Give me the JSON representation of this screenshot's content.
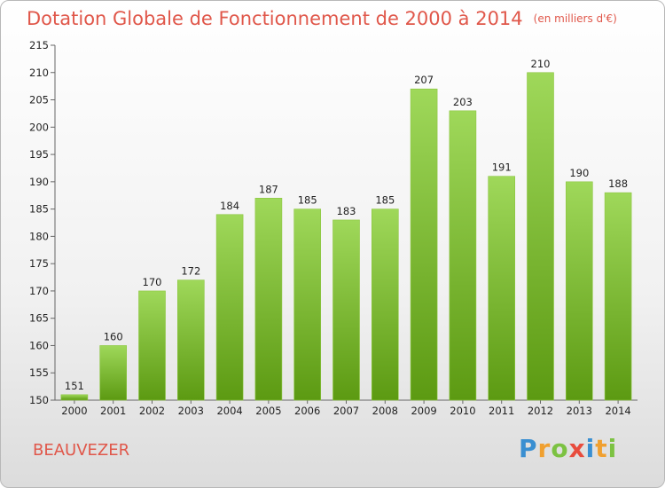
{
  "chart_data": {
    "type": "bar",
    "title": "Dotation Globale de Fonctionnement de 2000 à 2014",
    "unit_note": "(en milliers d'€)",
    "categories": [
      "2000",
      "2001",
      "2002",
      "2003",
      "2004",
      "2005",
      "2006",
      "2007",
      "2008",
      "2009",
      "2010",
      "2011",
      "2012",
      "2013",
      "2014"
    ],
    "values": [
      151,
      160,
      170,
      172,
      184,
      187,
      185,
      183,
      185,
      207,
      203,
      191,
      210,
      190,
      188
    ],
    "value_labels": [
      "151",
      "160",
      "170",
      "172",
      "184",
      "187",
      "185",
      "183",
      "185",
      "207",
      "203",
      "191",
      "210",
      "190",
      "188"
    ],
    "y_ticks": [
      "150",
      "155",
      "160",
      "165",
      "170",
      "175",
      "180",
      "185",
      "190",
      "195",
      "200",
      "205",
      "210",
      "215"
    ],
    "ylim": [
      150,
      215
    ],
    "grid": false,
    "bar_color_top": "#9fd85a",
    "bar_color_bottom": "#5c9a12"
  },
  "commune": "BEAUVEZER",
  "logo": {
    "letters": [
      "P",
      "r",
      "o",
      "x",
      "i",
      "t",
      "i"
    ],
    "colors": [
      "#3a8fd1",
      "#f0a030",
      "#7cc242",
      "#e84c3d",
      "#3a8fd1",
      "#f0a030",
      "#7cc242"
    ]
  }
}
